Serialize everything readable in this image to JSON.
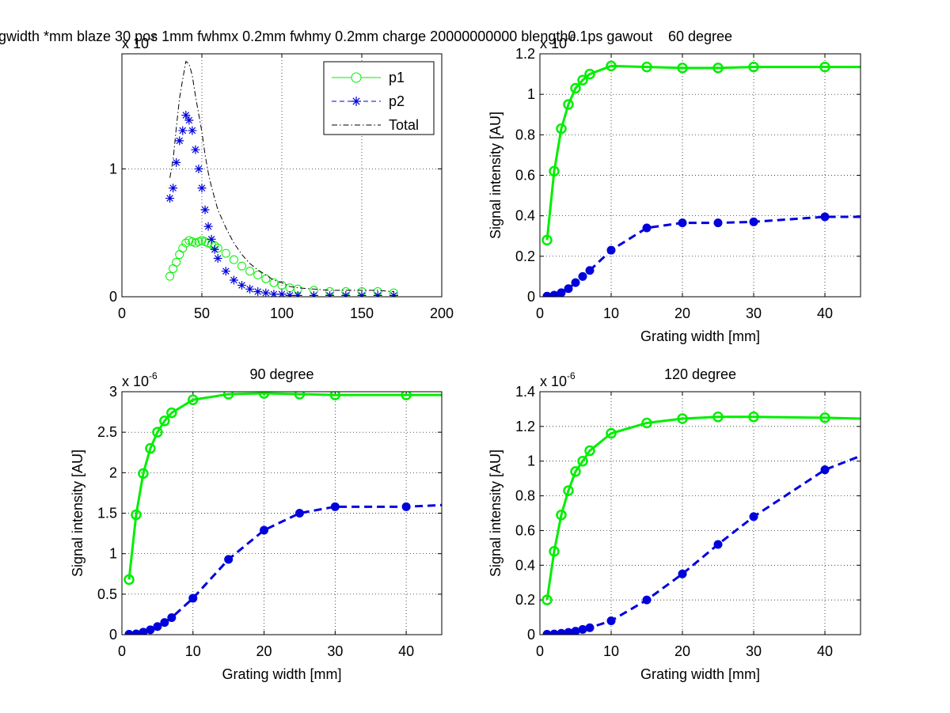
{
  "figure": {
    "suptitle": "gwidth *mm blaze 30 pos 1mm fwhmx 0.2mm fwhmy 0.2mm charge 20000000000 blength0.1ps gawout",
    "colors": {
      "p1": "#00ee00",
      "p2": "#0000dd",
      "total": "#000000"
    }
  },
  "chart_data": [
    {
      "type": "scatter",
      "title": "",
      "xlabel": "",
      "ylabel": "",
      "xlim": [
        0,
        200
      ],
      "ylim": [
        0,
        1.9
      ],
      "xticks": [
        0,
        50,
        100,
        150,
        200
      ],
      "yticks": [
        0,
        1
      ],
      "xtick_labels": [
        "0",
        "50",
        "100",
        "150",
        "200"
      ],
      "ytick_labels": [
        "0",
        "1"
      ],
      "y_multiplier": "x 10",
      "y_exponent": "-6",
      "grid": true,
      "legend": "top-right",
      "series": [
        {
          "name": "p1",
          "style": "circle-markers",
          "color": "#00ee00",
          "x": [
            30,
            32,
            34,
            36,
            38,
            40,
            42,
            44,
            46,
            48,
            50,
            52,
            54,
            56,
            58,
            60,
            65,
            70,
            75,
            80,
            85,
            90,
            95,
            100,
            105,
            110,
            120,
            130,
            140,
            150,
            160,
            170
          ],
          "y": [
            0.16,
            0.22,
            0.27,
            0.33,
            0.38,
            0.42,
            0.44,
            0.43,
            0.42,
            0.43,
            0.44,
            0.43,
            0.42,
            0.41,
            0.4,
            0.38,
            0.34,
            0.29,
            0.24,
            0.2,
            0.17,
            0.14,
            0.11,
            0.09,
            0.07,
            0.06,
            0.05,
            0.04,
            0.04,
            0.04,
            0.04,
            0.03
          ]
        },
        {
          "name": "p2",
          "style": "star-markers",
          "color": "#0000dd",
          "x": [
            30,
            32,
            34,
            36,
            38,
            40,
            42,
            44,
            46,
            48,
            50,
            52,
            54,
            56,
            58,
            60,
            65,
            70,
            75,
            80,
            85,
            90,
            95,
            100,
            105,
            110,
            120,
            130,
            140,
            150,
            160,
            170
          ],
          "y": [
            0.77,
            0.85,
            1.05,
            1.22,
            1.3,
            1.42,
            1.38,
            1.3,
            1.15,
            1.0,
            0.85,
            0.68,
            0.55,
            0.45,
            0.37,
            0.3,
            0.2,
            0.13,
            0.09,
            0.06,
            0.04,
            0.03,
            0.02,
            0.02,
            0.01,
            0.01,
            0.01,
            0.01,
            0.01,
            0.01,
            0.01,
            0.01
          ]
        },
        {
          "name": "Total",
          "style": "dash-dot-line",
          "color": "#000000",
          "x": [
            30,
            32,
            34,
            36,
            38,
            40,
            42,
            44,
            46,
            48,
            50,
            52,
            54,
            56,
            58,
            60,
            65,
            70,
            75,
            80,
            85,
            90,
            95,
            100,
            105,
            110,
            120,
            130,
            140,
            150,
            160,
            170
          ],
          "y": [
            0.93,
            1.07,
            1.32,
            1.55,
            1.7,
            1.84,
            1.82,
            1.73,
            1.57,
            1.43,
            1.29,
            1.11,
            0.97,
            0.86,
            0.77,
            0.68,
            0.54,
            0.42,
            0.33,
            0.26,
            0.21,
            0.17,
            0.13,
            0.11,
            0.08,
            0.07,
            0.06,
            0.05,
            0.05,
            0.05,
            0.05,
            0.04
          ]
        }
      ]
    },
    {
      "type": "line",
      "title": "60 degree",
      "xlabel": "Grating width [mm]",
      "ylabel": "Signal intensity [AU]",
      "xlim": [
        0,
        45
      ],
      "ylim": [
        0,
        1.2
      ],
      "xticks": [
        0,
        10,
        20,
        30,
        40
      ],
      "yticks": [
        0,
        0.2,
        0.4,
        0.6,
        0.8,
        1,
        1.2
      ],
      "xtick_labels": [
        "0",
        "10",
        "20",
        "30",
        "40"
      ],
      "ytick_labels": [
        "0",
        "0.2",
        "0.4",
        "0.6",
        "0.8",
        "1",
        "1.2"
      ],
      "y_multiplier": "x 10",
      "y_exponent": "-6",
      "grid": true,
      "x": [
        1,
        2,
        3,
        4,
        5,
        6,
        7,
        10,
        15,
        20,
        25,
        30,
        40,
        45
      ],
      "series": [
        {
          "name": "p1",
          "style": "solid-circle",
          "color": "#00ee00",
          "values": [
            0.28,
            0.62,
            0.83,
            0.95,
            1.03,
            1.07,
            1.1,
            1.14,
            1.135,
            1.13,
            1.13,
            1.135,
            1.135,
            1.135
          ]
        },
        {
          "name": "p2",
          "style": "dashed-dot",
          "color": "#0000dd",
          "values": [
            0.003,
            0.008,
            0.02,
            0.04,
            0.07,
            0.1,
            0.13,
            0.23,
            0.34,
            0.365,
            0.365,
            0.37,
            0.395,
            0.395
          ]
        }
      ]
    },
    {
      "type": "line",
      "title": "90 degree",
      "xlabel": "Grating width [mm]",
      "ylabel": "Signal intensity [AU]",
      "xlim": [
        0,
        45
      ],
      "ylim": [
        0,
        3
      ],
      "xticks": [
        0,
        10,
        20,
        30,
        40
      ],
      "yticks": [
        0,
        0.5,
        1,
        1.5,
        2,
        2.5,
        3
      ],
      "xtick_labels": [
        "0",
        "10",
        "20",
        "30",
        "40"
      ],
      "ytick_labels": [
        "0",
        "0.5",
        "1",
        "1.5",
        "2",
        "2.5",
        "3"
      ],
      "y_multiplier": "x 10",
      "y_exponent": "-6",
      "grid": true,
      "x": [
        1,
        2,
        3,
        4,
        5,
        6,
        7,
        10,
        15,
        20,
        25,
        30,
        40,
        45
      ],
      "series": [
        {
          "name": "p1",
          "style": "solid-circle",
          "color": "#00ee00",
          "values": [
            0.68,
            1.48,
            1.99,
            2.3,
            2.5,
            2.64,
            2.74,
            2.9,
            2.97,
            2.98,
            2.97,
            2.96,
            2.96,
            2.96
          ]
        },
        {
          "name": "p2",
          "style": "dashed-dot",
          "color": "#0000dd",
          "values": [
            0.005,
            0.01,
            0.03,
            0.06,
            0.1,
            0.15,
            0.21,
            0.45,
            0.93,
            1.29,
            1.5,
            1.58,
            1.58,
            1.6
          ]
        }
      ]
    },
    {
      "type": "line",
      "title": "120 degree",
      "xlabel": "Grating width [mm]",
      "ylabel": "Signal intensity [AU]",
      "xlim": [
        0,
        45
      ],
      "ylim": [
        0,
        1.4
      ],
      "xticks": [
        0,
        10,
        20,
        30,
        40
      ],
      "yticks": [
        0,
        0.2,
        0.4,
        0.6,
        0.8,
        1,
        1.2,
        1.4
      ],
      "xtick_labels": [
        "0",
        "10",
        "20",
        "30",
        "40"
      ],
      "ytick_labels": [
        "0",
        "0.2",
        "0.4",
        "0.6",
        "0.8",
        "1",
        "1.2",
        "1.4"
      ],
      "y_multiplier": "x 10",
      "y_exponent": "-6",
      "grid": true,
      "x": [
        1,
        2,
        3,
        4,
        5,
        6,
        7,
        10,
        15,
        20,
        25,
        30,
        40,
        45
      ],
      "series": [
        {
          "name": "p1",
          "style": "solid-circle",
          "color": "#00ee00",
          "values": [
            0.2,
            0.48,
            0.69,
            0.83,
            0.94,
            1.0,
            1.06,
            1.16,
            1.22,
            1.245,
            1.255,
            1.255,
            1.25,
            1.245
          ]
        },
        {
          "name": "p2",
          "style": "dashed-dot",
          "color": "#0000dd",
          "values": [
            0.002,
            0.004,
            0.008,
            0.013,
            0.02,
            0.03,
            0.04,
            0.08,
            0.2,
            0.35,
            0.52,
            0.68,
            0.95,
            1.03
          ]
        }
      ]
    }
  ]
}
